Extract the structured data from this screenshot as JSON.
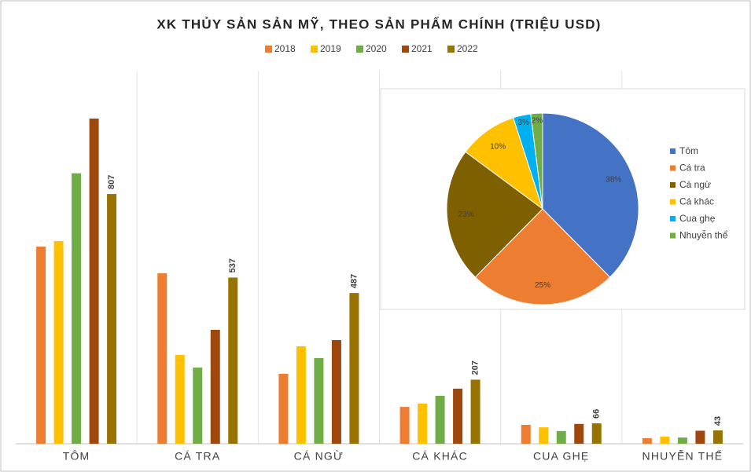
{
  "chart_data": [
    {
      "type": "bar",
      "title": "XK THỦY SẢN SẢN MỸ, THEO SẢN PHẨM CHÍNH (TRIỆU USD)",
      "categories": [
        "TÔM",
        "CÁ TRA",
        "CÁ NGỪ",
        "CÁ KHÁC",
        "CUA GHẸ",
        "NHUYỄN THỂ"
      ],
      "series": [
        {
          "name": "2018",
          "color": "#ed7d31",
          "values": [
            637,
            551,
            226,
            119,
            61,
            18
          ]
        },
        {
          "name": "2019",
          "color": "#ffc000",
          "values": [
            655,
            287,
            315,
            130,
            53,
            23
          ]
        },
        {
          "name": "2020",
          "color": "#70ad47",
          "values": [
            874,
            246,
            277,
            155,
            41,
            20
          ]
        },
        {
          "name": "2021",
          "color": "#9e480e",
          "values": [
            1051,
            368,
            335,
            178,
            64,
            42
          ]
        },
        {
          "name": "2022",
          "color": "#997300",
          "values": [
            807,
            537,
            487,
            207,
            66,
            43
          ],
          "show_labels": true
        }
      ],
      "legend": "top"
    },
    {
      "type": "pie",
      "categories": [
        "Tôm",
        "Cá tra",
        "Cá ngừ",
        "Cá khác",
        "Cua ghẹ",
        "Nhuyễn thể"
      ],
      "values": [
        38,
        25,
        23,
        10,
        3,
        2
      ],
      "value_labels": [
        "38%",
        "25%",
        "23%",
        "10%",
        "3%",
        "2%"
      ],
      "colors": [
        "#4472c4",
        "#ed7d31",
        "#7f6000",
        "#ffc000",
        "#00b0f0",
        "#70ad47"
      ],
      "legend": "right"
    }
  ]
}
